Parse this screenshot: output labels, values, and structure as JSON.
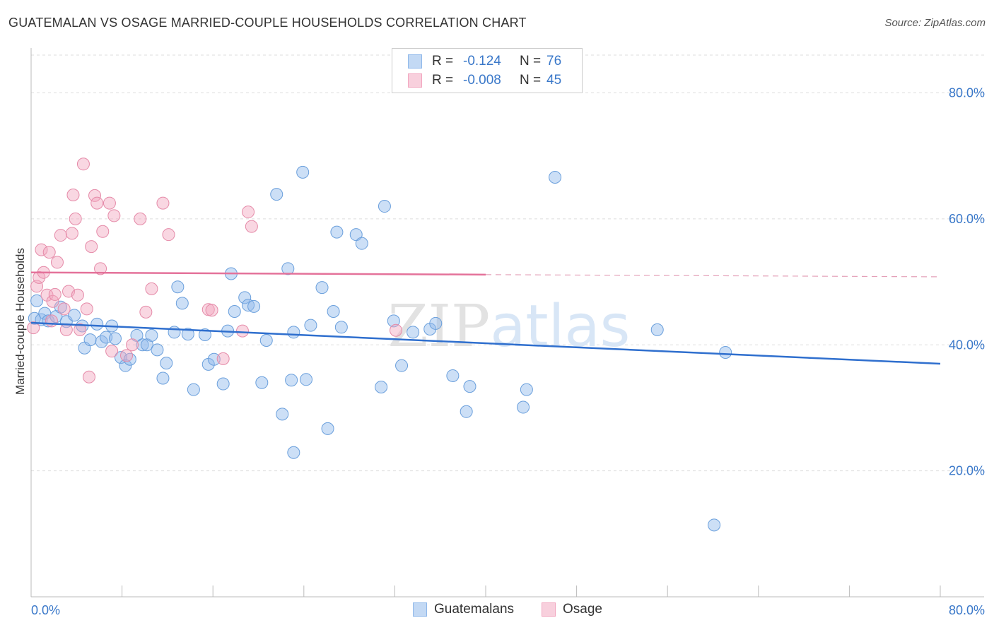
{
  "title": "GUATEMALAN VS OSAGE MARRIED-COUPLE HOUSEHOLDS CORRELATION CHART",
  "source": "Source: ZipAtlas.com",
  "legend": {
    "rows": [
      {
        "r_label": "R =",
        "r_value": "-0.124",
        "n_label": "N =",
        "n_value": "76",
        "color": "#8fb8ea"
      },
      {
        "r_label": "R =",
        "r_value": "-0.008",
        "n_label": "N =",
        "n_value": "45",
        "color": "#f2a6bf"
      }
    ]
  },
  "bottom_legend": [
    {
      "label": "Guatemalans",
      "color": "#8fb8ea"
    },
    {
      "label": "Osage",
      "color": "#f2a6bf"
    }
  ],
  "chart_data": {
    "type": "scatter",
    "title": "GUATEMALAN VS OSAGE MARRIED-COUPLE HOUSEHOLDS CORRELATION CHART",
    "xlabel": "",
    "ylabel": "Married-couple Households",
    "xlim": [
      0,
      80
    ],
    "ylim": [
      0,
      86
    ],
    "x_tick_labels": [
      "0.0%",
      "80.0%"
    ],
    "y_ticks": [
      20,
      40,
      60,
      80
    ],
    "y_tick_labels": [
      "20.0%",
      "40.0%",
      "60.0%",
      "80.0%"
    ],
    "watermark": "ZIPatlas",
    "series": [
      {
        "name": "Guatemalans",
        "color": "#8fb8ea",
        "stroke": "#6a9fdc",
        "trend": {
          "x0": 0,
          "y0": 43.5,
          "x1": 80,
          "y1": 37.0,
          "solid_until": 80
        },
        "points": [
          [
            0.3,
            44.2
          ],
          [
            0.9,
            44.0
          ],
          [
            1.2,
            45.0
          ],
          [
            1.5,
            43.8
          ],
          [
            2.2,
            44.5
          ],
          [
            2.6,
            46.0
          ],
          [
            3.1,
            43.7
          ],
          [
            3.8,
            44.7
          ],
          [
            4.5,
            43.0
          ],
          [
            4.7,
            39.5
          ],
          [
            5.2,
            40.8
          ],
          [
            5.8,
            43.3
          ],
          [
            6.2,
            40.5
          ],
          [
            6.6,
            41.2
          ],
          [
            7.1,
            43.0
          ],
          [
            7.4,
            41.0
          ],
          [
            7.9,
            38.0
          ],
          [
            8.3,
            36.7
          ],
          [
            8.7,
            37.7
          ],
          [
            9.3,
            41.5
          ],
          [
            9.8,
            40.0
          ],
          [
            10.2,
            40.0
          ],
          [
            10.6,
            41.5
          ],
          [
            11.1,
            39.2
          ],
          [
            11.6,
            34.7
          ],
          [
            11.9,
            37.1
          ],
          [
            12.6,
            42.0
          ],
          [
            12.9,
            49.2
          ],
          [
            13.3,
            46.6
          ],
          [
            13.8,
            41.7
          ],
          [
            14.3,
            32.9
          ],
          [
            15.3,
            41.6
          ],
          [
            15.6,
            36.9
          ],
          [
            16.1,
            37.7
          ],
          [
            16.9,
            33.8
          ],
          [
            17.3,
            42.2
          ],
          [
            17.6,
            51.3
          ],
          [
            17.9,
            45.3
          ],
          [
            18.8,
            47.5
          ],
          [
            19.1,
            46.3
          ],
          [
            19.6,
            46.1
          ],
          [
            20.3,
            34.0
          ],
          [
            20.7,
            40.7
          ],
          [
            21.6,
            63.9
          ],
          [
            22.1,
            29.0
          ],
          [
            22.6,
            52.1
          ],
          [
            22.9,
            34.4
          ],
          [
            23.1,
            42.0
          ],
          [
            23.9,
            67.4
          ],
          [
            24.2,
            34.5
          ],
          [
            24.6,
            43.1
          ],
          [
            25.6,
            49.1
          ],
          [
            26.1,
            26.7
          ],
          [
            26.6,
            45.3
          ],
          [
            26.9,
            57.9
          ],
          [
            27.3,
            42.8
          ],
          [
            28.6,
            57.5
          ],
          [
            29.1,
            56.1
          ],
          [
            30.8,
            33.3
          ],
          [
            31.1,
            62.0
          ],
          [
            31.9,
            43.8
          ],
          [
            32.6,
            36.7
          ],
          [
            33.6,
            42.0
          ],
          [
            35.1,
            42.5
          ],
          [
            35.6,
            43.4
          ],
          [
            37.1,
            35.1
          ],
          [
            38.3,
            29.4
          ],
          [
            38.6,
            33.4
          ],
          [
            43.3,
            30.1
          ],
          [
            43.6,
            32.9
          ],
          [
            46.1,
            66.6
          ],
          [
            23.1,
            22.9
          ],
          [
            55.1,
            42.4
          ],
          [
            60.1,
            11.4
          ],
          [
            61.1,
            38.8
          ],
          [
            0.5,
            47.0
          ]
        ]
      },
      {
        "name": "Osage",
        "color": "#f2a6bf",
        "stroke": "#e58aa8",
        "trend": {
          "x0": 0,
          "y0": 51.5,
          "x1": 80,
          "y1": 50.8,
          "solid_until": 40
        },
        "points": [
          [
            0.2,
            42.7
          ],
          [
            0.5,
            49.3
          ],
          [
            0.7,
            50.7
          ],
          [
            0.9,
            55.1
          ],
          [
            1.1,
            51.5
          ],
          [
            1.4,
            47.9
          ],
          [
            1.6,
            54.7
          ],
          [
            1.8,
            43.8
          ],
          [
            1.9,
            46.9
          ],
          [
            2.1,
            48.0
          ],
          [
            2.3,
            53.1
          ],
          [
            2.6,
            57.4
          ],
          [
            2.9,
            45.7
          ],
          [
            3.1,
            42.4
          ],
          [
            3.3,
            48.5
          ],
          [
            3.6,
            57.7
          ],
          [
            3.7,
            63.8
          ],
          [
            3.9,
            60.0
          ],
          [
            4.1,
            47.9
          ],
          [
            4.3,
            42.4
          ],
          [
            4.6,
            68.7
          ],
          [
            4.9,
            45.7
          ],
          [
            5.1,
            34.9
          ],
          [
            5.3,
            55.6
          ],
          [
            5.6,
            63.7
          ],
          [
            5.8,
            62.5
          ],
          [
            6.1,
            52.1
          ],
          [
            6.3,
            58.0
          ],
          [
            6.9,
            62.5
          ],
          [
            7.1,
            39.0
          ],
          [
            7.3,
            60.5
          ],
          [
            8.4,
            38.3
          ],
          [
            8.9,
            40.0
          ],
          [
            9.6,
            60.0
          ],
          [
            10.1,
            45.2
          ],
          [
            10.6,
            48.9
          ],
          [
            11.6,
            62.5
          ],
          [
            12.1,
            57.5
          ],
          [
            15.6,
            45.6
          ],
          [
            15.9,
            45.5
          ],
          [
            16.9,
            37.8
          ],
          [
            18.6,
            42.2
          ],
          [
            19.1,
            61.1
          ],
          [
            19.4,
            58.8
          ],
          [
            32.1,
            42.3
          ]
        ]
      }
    ]
  }
}
